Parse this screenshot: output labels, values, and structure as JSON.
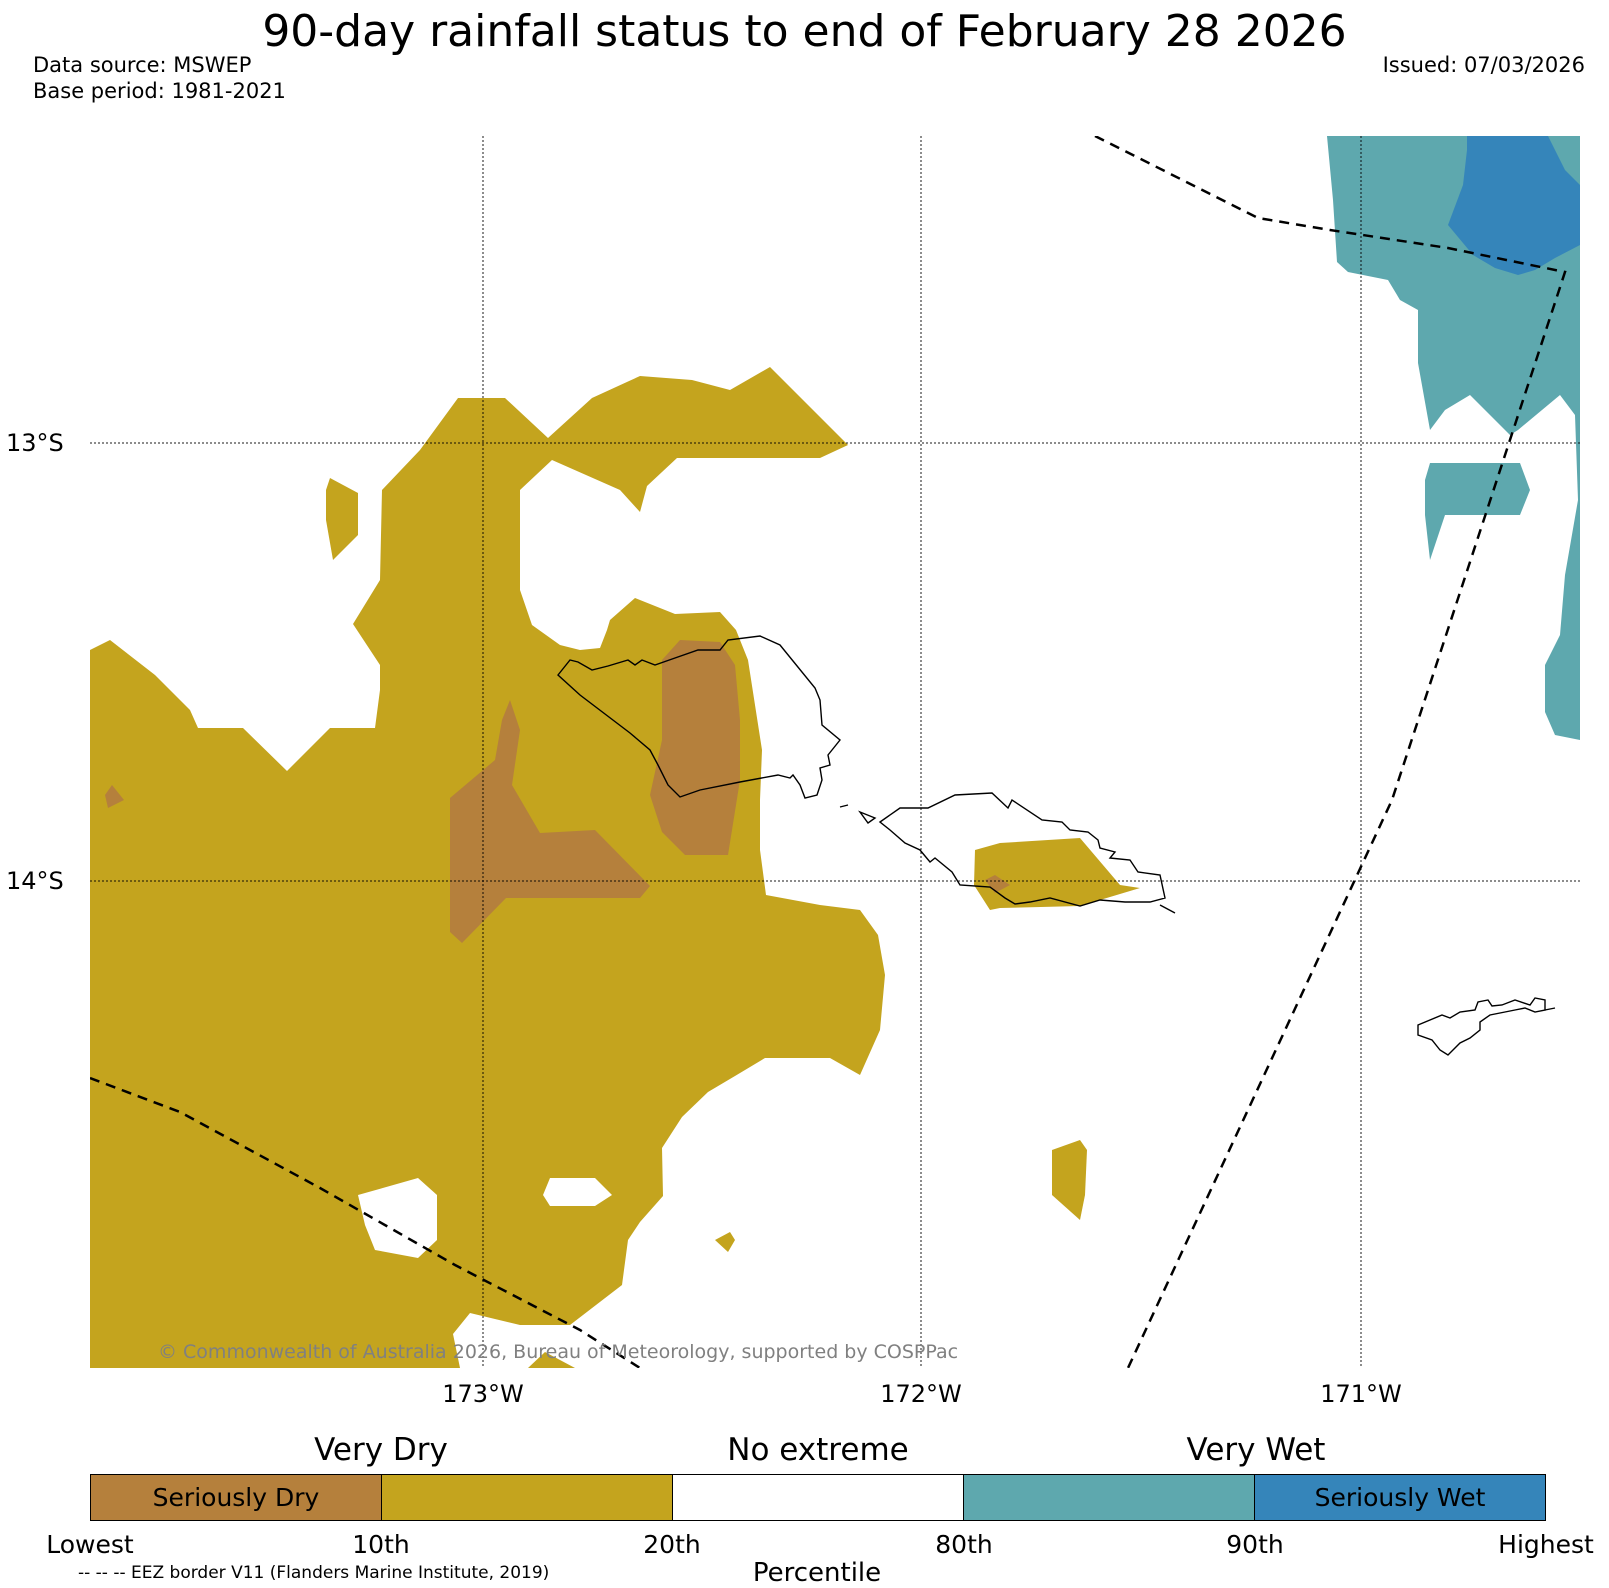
{
  "title": "90-day rainfall status to end of February 28 2026",
  "data_source": "Data source: MSWEP",
  "base_period": "Base period: 1981-2021",
  "issued": "Issued: 07/03/2026",
  "map": {
    "latitude_labels": [
      "13°S",
      "14°S"
    ],
    "longitude_labels": [
      "173°W",
      "172°W",
      "171°W"
    ],
    "copyright": "© Commonwealth of Australia 2026, Bureau of Meteorology, supported by COSPPac"
  },
  "legend": {
    "categories": [
      "Very Dry",
      "No extreme",
      "Very Wet"
    ],
    "segments": [
      {
        "label": "Seriously Dry",
        "color": "#b5803c"
      },
      {
        "label": "",
        "color": "#c4a41e"
      },
      {
        "label": "",
        "color": "#ffffff"
      },
      {
        "label": "",
        "color": "#5ea8ae"
      },
      {
        "label": "Seriously Wet",
        "color": "#3585ba"
      }
    ],
    "ticks": [
      "Lowest",
      "10th",
      "20th",
      "80th",
      "90th",
      "Highest"
    ],
    "axis_label": "Percentile",
    "eez_note": "-- -- -- EEZ border V11 (Flanders Marine Institute, 2019)"
  }
}
